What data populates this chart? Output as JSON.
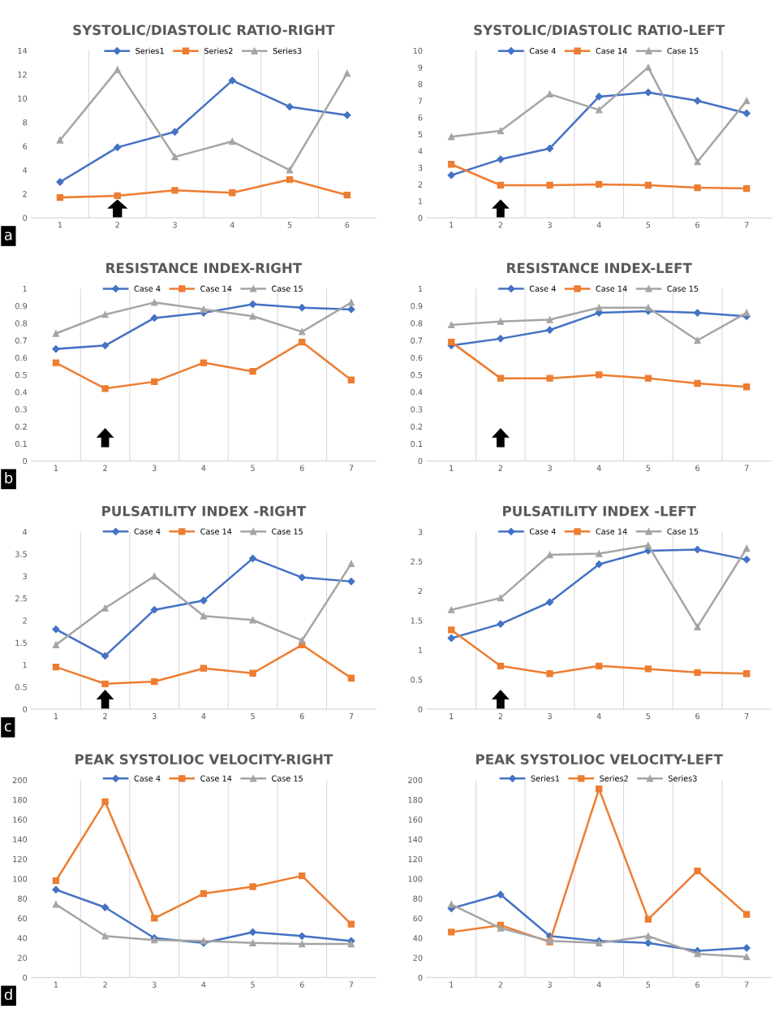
{
  "chart_data": [
    {
      "type": "line",
      "title": "SYSTOLIC/DIASTOLIC RATIO-RIGHT",
      "categories": [
        "1",
        "2",
        "3",
        "4",
        "5",
        "6"
      ],
      "ylim": [
        0,
        14
      ],
      "yticks": [
        0,
        2,
        4,
        6,
        8,
        10,
        12,
        14
      ],
      "grid": "x",
      "legend": "top",
      "annotations": [
        "a"
      ],
      "series": [
        {
          "name": "Series1",
          "color": "#4472c4",
          "marker": "diamond",
          "values": [
            3.0,
            5.9,
            7.2,
            11.5,
            9.3,
            8.6
          ]
        },
        {
          "name": "Series2",
          "color": "#ed7d31",
          "marker": "square",
          "values": [
            1.7,
            1.85,
            2.3,
            2.1,
            3.2,
            1.9
          ]
        },
        {
          "name": "Series3",
          "color": "#a5a5a5",
          "marker": "triangle",
          "values": [
            6.5,
            12.4,
            5.1,
            6.4,
            4.0,
            12.1
          ]
        }
      ]
    },
    {
      "type": "line",
      "title": "SYSTOLIC/DIASTOLIC RATIO-LEFT",
      "categories": [
        "1",
        "2",
        "3",
        "4",
        "5",
        "6",
        "7"
      ],
      "ylim": [
        0,
        10
      ],
      "yticks": [
        0,
        1,
        2,
        3,
        4,
        5,
        6,
        7,
        8,
        9,
        10
      ],
      "grid": "x",
      "legend": "top",
      "series": [
        {
          "name": "Case 4",
          "color": "#4472c4",
          "marker": "diamond",
          "values": [
            2.55,
            3.5,
            4.15,
            7.25,
            7.5,
            7.0,
            6.25
          ]
        },
        {
          "name": "Case 14",
          "color": "#ed7d31",
          "marker": "square",
          "values": [
            3.2,
            1.95,
            1.95,
            2.0,
            1.95,
            1.8,
            1.75
          ]
        },
        {
          "name": "Case 15",
          "color": "#a5a5a5",
          "marker": "triangle",
          "values": [
            4.85,
            5.2,
            7.4,
            6.45,
            9.0,
            3.35,
            7.0
          ]
        }
      ]
    },
    {
      "type": "line",
      "title": "RESISTANCE INDEX-RIGHT",
      "categories": [
        "1",
        "2",
        "3",
        "4",
        "5",
        "6",
        "7"
      ],
      "ylim": [
        0,
        1
      ],
      "yticks": [
        0,
        0.1,
        0.2,
        0.3,
        0.4,
        0.5,
        0.6,
        0.7,
        0.8,
        0.9,
        1
      ],
      "grid": "x",
      "legend": "top",
      "annotations": [
        "b"
      ],
      "series": [
        {
          "name": "Case 4",
          "color": "#4472c4",
          "marker": "diamond",
          "values": [
            0.65,
            0.67,
            0.83,
            0.86,
            0.91,
            0.89,
            0.88
          ]
        },
        {
          "name": "Case 14",
          "color": "#ed7d31",
          "marker": "square",
          "values": [
            0.57,
            0.42,
            0.46,
            0.57,
            0.52,
            0.69,
            0.47
          ]
        },
        {
          "name": "Case 15",
          "color": "#a5a5a5",
          "marker": "triangle",
          "values": [
            0.74,
            0.85,
            0.92,
            0.88,
            0.84,
            0.75,
            0.92
          ]
        }
      ]
    },
    {
      "type": "line",
      "title": "RESISTANCE INDEX-LEFT",
      "categories": [
        "1",
        "2",
        "3",
        "4",
        "5",
        "6",
        "7"
      ],
      "ylim": [
        0,
        1
      ],
      "yticks": [
        0,
        0.1,
        0.2,
        0.3,
        0.4,
        0.5,
        0.6,
        0.7,
        0.8,
        0.9,
        1
      ],
      "grid": "x",
      "legend": "top",
      "series": [
        {
          "name": "Case 4",
          "color": "#4472c4",
          "marker": "diamond",
          "values": [
            0.67,
            0.71,
            0.76,
            0.86,
            0.87,
            0.86,
            0.84
          ]
        },
        {
          "name": "Case 14",
          "color": "#ed7d31",
          "marker": "square",
          "values": [
            0.69,
            0.48,
            0.48,
            0.5,
            0.48,
            0.45,
            0.43
          ]
        },
        {
          "name": "Case 15",
          "color": "#a5a5a5",
          "marker": "triangle",
          "values": [
            0.79,
            0.81,
            0.82,
            0.89,
            0.89,
            0.7,
            0.86
          ]
        }
      ]
    },
    {
      "type": "line",
      "title": "PULSATILITY INDEX -RIGHT",
      "categories": [
        "1",
        "2",
        "3",
        "4",
        "5",
        "6",
        "7"
      ],
      "ylim": [
        0,
        4
      ],
      "yticks": [
        0,
        0.5,
        1,
        1.5,
        2,
        2.5,
        3,
        3.5,
        4
      ],
      "grid": "x",
      "legend": "top",
      "annotations": [
        "c"
      ],
      "series": [
        {
          "name": "Case 4",
          "color": "#4472c4",
          "marker": "diamond",
          "values": [
            1.8,
            1.2,
            2.24,
            2.45,
            3.4,
            2.97,
            2.88
          ]
        },
        {
          "name": "Case 14",
          "color": "#ed7d31",
          "marker": "square",
          "values": [
            0.95,
            0.57,
            0.62,
            0.92,
            0.81,
            1.45,
            0.7
          ]
        },
        {
          "name": "Case 15",
          "color": "#a5a5a5",
          "marker": "triangle",
          "values": [
            1.45,
            2.28,
            3.0,
            2.1,
            2.01,
            1.55,
            3.28
          ]
        }
      ]
    },
    {
      "type": "line",
      "title": "PULSATILITY INDEX -LEFT",
      "categories": [
        "1",
        "2",
        "3",
        "4",
        "5",
        "6",
        "7"
      ],
      "ylim": [
        0,
        3
      ],
      "yticks": [
        0,
        0.5,
        1,
        1.5,
        2,
        2.5,
        3
      ],
      "grid": "x",
      "legend": "top",
      "series": [
        {
          "name": "Case 4",
          "color": "#4472c4",
          "marker": "diamond",
          "values": [
            1.2,
            1.44,
            1.81,
            2.45,
            2.68,
            2.7,
            2.53
          ]
        },
        {
          "name": "Case 14",
          "color": "#ed7d31",
          "marker": "square",
          "values": [
            1.34,
            0.73,
            0.6,
            0.73,
            0.68,
            0.62,
            0.6
          ]
        },
        {
          "name": "Case 15",
          "color": "#a5a5a5",
          "marker": "triangle",
          "values": [
            1.68,
            1.88,
            2.61,
            2.63,
            2.77,
            1.39,
            2.72
          ]
        }
      ]
    },
    {
      "type": "line",
      "title": "PEAK SYSTOLIOC VELOCITY-RIGHT",
      "categories": [
        "1",
        "2",
        "3",
        "4",
        "5",
        "6",
        "7"
      ],
      "ylim": [
        0,
        200
      ],
      "yticks": [
        0,
        20,
        40,
        60,
        80,
        100,
        120,
        140,
        160,
        180,
        200
      ],
      "grid": "x",
      "legend": "top",
      "annotations": [
        "d"
      ],
      "series": [
        {
          "name": "Case 4",
          "color": "#4472c4",
          "marker": "diamond",
          "values": [
            89,
            71,
            40,
            35,
            46,
            42,
            37
          ]
        },
        {
          "name": "Case 14",
          "color": "#ed7d31",
          "marker": "square",
          "values": [
            98,
            178,
            60,
            85,
            92,
            103,
            54
          ]
        },
        {
          "name": "Case 15",
          "color": "#a5a5a5",
          "marker": "triangle",
          "values": [
            74,
            42,
            38,
            37,
            35,
            34,
            34
          ]
        }
      ]
    },
    {
      "type": "line",
      "title": "PEAK SYSTOLIOC VELOCITY-LEFT",
      "categories": [
        "1",
        "2",
        "3",
        "4",
        "5",
        "6",
        "7"
      ],
      "ylim": [
        0,
        200
      ],
      "yticks": [
        0,
        20,
        40,
        60,
        80,
        100,
        120,
        140,
        160,
        180,
        200
      ],
      "grid": "x",
      "legend": "top",
      "series": [
        {
          "name": "Series1",
          "color": "#4472c4",
          "marker": "diamond",
          "values": [
            70,
            84,
            42,
            37,
            35,
            27,
            30
          ]
        },
        {
          "name": "Series2",
          "color": "#ed7d31",
          "marker": "square",
          "values": [
            46,
            53,
            36,
            191,
            59,
            108,
            64
          ]
        },
        {
          "name": "Series3",
          "color": "#a5a5a5",
          "marker": "triangle",
          "values": [
            74,
            50,
            37,
            35,
            42,
            24,
            21
          ]
        }
      ]
    }
  ]
}
